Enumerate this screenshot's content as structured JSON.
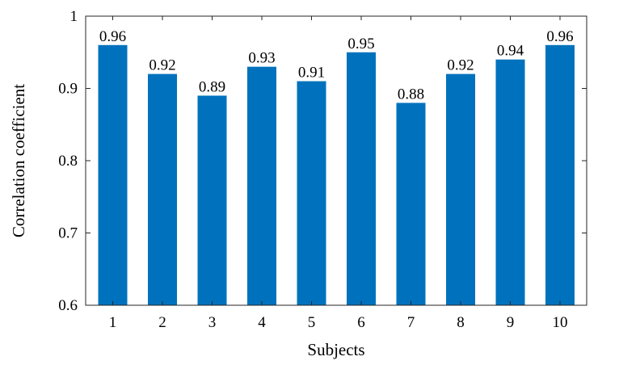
{
  "chart_data": {
    "type": "bar",
    "categories": [
      "1",
      "2",
      "3",
      "4",
      "5",
      "6",
      "7",
      "8",
      "9",
      "10"
    ],
    "values": [
      0.96,
      0.92,
      0.89,
      0.93,
      0.91,
      0.95,
      0.88,
      0.92,
      0.94,
      0.96
    ],
    "data_labels": [
      "0.96",
      "0.92",
      "0.89",
      "0.93",
      "0.91",
      "0.95",
      "0.88",
      "0.92",
      "0.94",
      "0.96"
    ],
    "title": "",
    "xlabel": "Subjects",
    "ylabel": "Correlation coefficient",
    "ylim": [
      0.6,
      1.0
    ],
    "yticks": [
      0.6,
      0.7,
      0.8,
      0.9,
      1.0
    ],
    "ytick_labels": [
      "0.6",
      "0.7",
      "0.8",
      "0.9",
      "1"
    ],
    "grid": false,
    "legend": "none",
    "bar_color": "#0072BD"
  }
}
